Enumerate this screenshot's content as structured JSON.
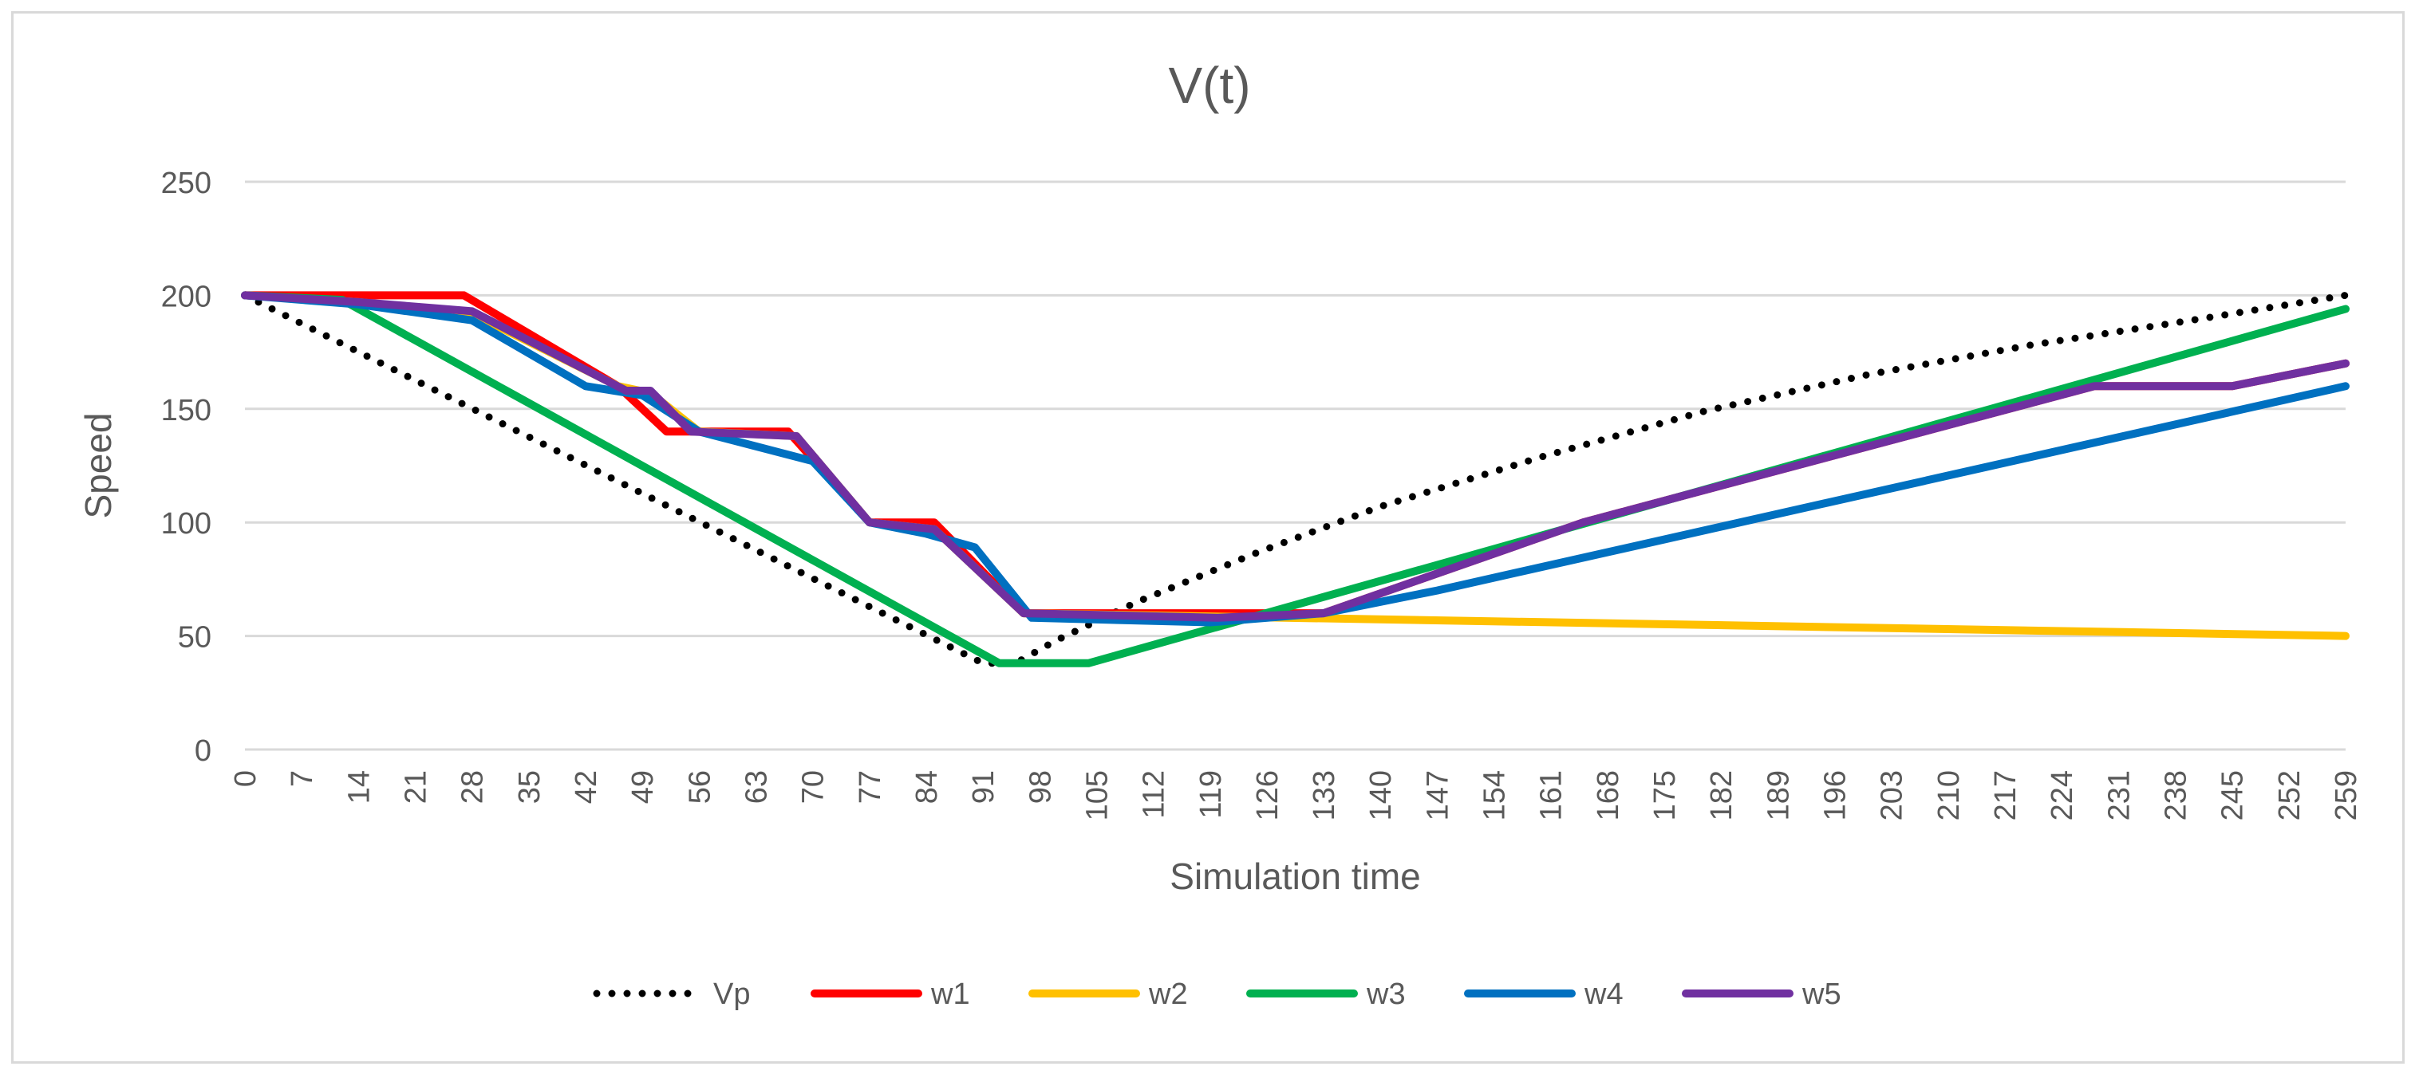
{
  "chart_data": {
    "type": "line",
    "title": "V(t)",
    "xlabel": "Simulation time",
    "ylabel": "Speed",
    "xlim": [
      0,
      259
    ],
    "ylim": [
      0,
      250
    ],
    "yticks": [
      0,
      50,
      100,
      150,
      200,
      250
    ],
    "xticks": [
      0,
      7,
      14,
      21,
      28,
      35,
      42,
      49,
      56,
      63,
      70,
      77,
      84,
      91,
      98,
      105,
      112,
      119,
      126,
      133,
      140,
      147,
      154,
      161,
      168,
      175,
      182,
      189,
      196,
      203,
      210,
      217,
      224,
      231,
      238,
      245,
      252,
      259
    ],
    "grid": true,
    "legend_position": "bottom",
    "series": [
      {
        "name": "Vp",
        "color": "#000000",
        "style": "dotted",
        "x": [
          0,
          91,
          95,
          100,
          110,
          125,
          140,
          160,
          180,
          200,
          220,
          240,
          259
        ],
        "y": [
          200,
          38,
          38,
          48,
          65,
          87,
          107,
          129,
          149,
          165,
          178,
          189,
          200
        ]
      },
      {
        "name": "w1",
        "color": "#ff0000",
        "style": "solid",
        "x": [
          0,
          27,
          46,
          52,
          56,
          67,
          77,
          85,
          96,
          120,
          133,
          165,
          228,
          245,
          259
        ],
        "y": [
          200,
          200,
          160,
          140,
          140,
          140,
          100,
          100,
          60,
          60,
          60,
          100,
          160,
          160,
          170
        ]
      },
      {
        "name": "w2",
        "color": "#ffc000",
        "style": "solid",
        "x": [
          0,
          14,
          28,
          46,
          50,
          56,
          68,
          77,
          85,
          96,
          259
        ],
        "y": [
          200,
          197,
          192,
          160,
          157,
          140,
          138,
          100,
          97,
          60,
          50
        ]
      },
      {
        "name": "w3",
        "color": "#00b050",
        "style": "solid",
        "x": [
          0,
          12,
          93,
          104,
          259
        ],
        "y": [
          200,
          198,
          38,
          38,
          194
        ]
      },
      {
        "name": "w4",
        "color": "#0070c0",
        "style": "solid",
        "x": [
          0,
          14,
          28,
          42,
          49,
          56,
          70,
          77,
          84,
          90,
          97,
          119,
          133,
          147,
          259
        ],
        "y": [
          200,
          196,
          189,
          160,
          156,
          140,
          127,
          100,
          95,
          89,
          58,
          56,
          60,
          70,
          160
        ]
      },
      {
        "name": "w5",
        "color": "#7030a0",
        "style": "solid",
        "x": [
          0,
          14,
          28,
          47,
          50,
          55,
          68,
          77,
          85,
          96,
          120,
          133,
          165,
          228,
          245,
          259
        ],
        "y": [
          200,
          197,
          193,
          158,
          158,
          140,
          138,
          100,
          97,
          60,
          58,
          60,
          100,
          160,
          160,
          170
        ]
      }
    ]
  }
}
